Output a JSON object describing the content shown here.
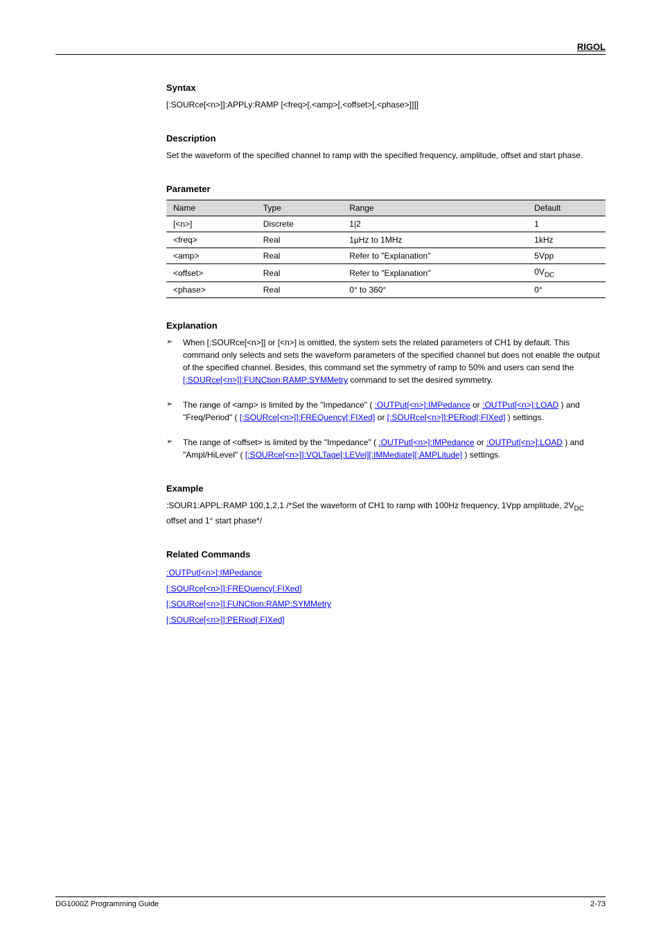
{
  "header": {
    "brand": "RIGOL"
  },
  "sections": {
    "syntax": {
      "label": "Syntax",
      "lines": [
        "[:SOURce[<n>]]:APPLy:RAMP [<freq>[,<amp>[,<offset>[,<phase>]]]]"
      ]
    },
    "description": {
      "label": "Description",
      "text": "Set the waveform of the specified channel to ramp with the specified frequency, amplitude, offset and start phase."
    },
    "parameter": {
      "label": "Parameter",
      "columns": [
        "Name",
        "Type",
        "Range",
        "Default"
      ],
      "rows": [
        [
          "[<n>]",
          "Discrete",
          "1|2",
          "1"
        ],
        [
          "<freq>",
          "Real",
          "1μHz to 1MHz",
          "1kHz"
        ],
        [
          "<amp>",
          "Real",
          "Refer to \"Explanation\"",
          "5Vpp"
        ],
        [
          "<offset>",
          "Real",
          "Refer to \"Explanation\"",
          "0V",
          "DC"
        ],
        [
          "<phase>",
          "Real",
          "0° to 360°",
          "0°"
        ]
      ]
    },
    "explanation": {
      "label": "Explanation",
      "items": [
        {
          "text": "When [:SOURce[<n>]] or [<n>] is omitted, the system sets the related parameters of CH1 by default. This command only selects and sets the waveform parameters of the specified channel but does not enable the output of the specified channel. Besides, this command set the symmetry of ramp to 50% and users can send the ",
          "link1": "[:SOURce[<n>]]:FUNCtion:RAMP:SYMMetry",
          "tail1": " command to set the desired symmetry."
        },
        {
          "text": "The range of <amp> is limited by the \"Impedance\" (",
          "link1": ":OUTPut[<n>]:IMPedance",
          "mid1": " or ",
          "link2": ":OUTPut[<n>]:LOAD",
          "mid2": ") and \"Freq/Period\" (",
          "link3": "[:SOURce[<n>]]:FREQuency[:FIXed]",
          "mid3": " or ",
          "link4": "[:SOURce[<n>]]:PERiod[:FIXed]",
          "tail": ") settings."
        },
        {
          "text": "The range of <offset> is limited by the \"Impedance\" (",
          "link1": ":OUTPut[<n>]:IMPedance",
          "mid1": " or ",
          "link2": ":OUTPut[<n>]:LOAD",
          "mid2": ") and \"Ampl/HiLevel\" (",
          "link3": "[:SOURce[<n>]]:VOLTage[:LEVel][:IMMediate][:AMPLitude]",
          "tail": ") settings."
        }
      ]
    },
    "example": {
      "label": "Example",
      "text": ":SOUR1:APPL:RAMP 100,1,2,1    /*Set the waveform of CH1 to ramp with 100Hz frequency, 1Vpp amplitude, 2V",
      "text2": " offset and 1° start phase*/",
      "offset_sub": "DC"
    },
    "related": {
      "label": "Related Commands",
      "items": [
        ":OUTPut[<n>]:IMPedance",
        "[:SOURce[<n>]]:FREQuency[:FIXed]",
        "[:SOURce[<n>]]:FUNCtion:RAMP:SYMMetry",
        "[:SOURce[<n>]]:PERiod[:FIXed]"
      ]
    }
  },
  "footer": {
    "left": "DG1000Z Programming Guide",
    "right": "2-73"
  },
  "colors": {
    "link": "#0000ff",
    "table_header_bg": "#d9d9d9",
    "rule": "#000000",
    "text": "#000000",
    "bg": "#ffffff"
  },
  "typography": {
    "base_font_size_pt": 9,
    "brand_font_size_pt": 10,
    "font_family": "Verdana, Arial, sans-serif"
  }
}
